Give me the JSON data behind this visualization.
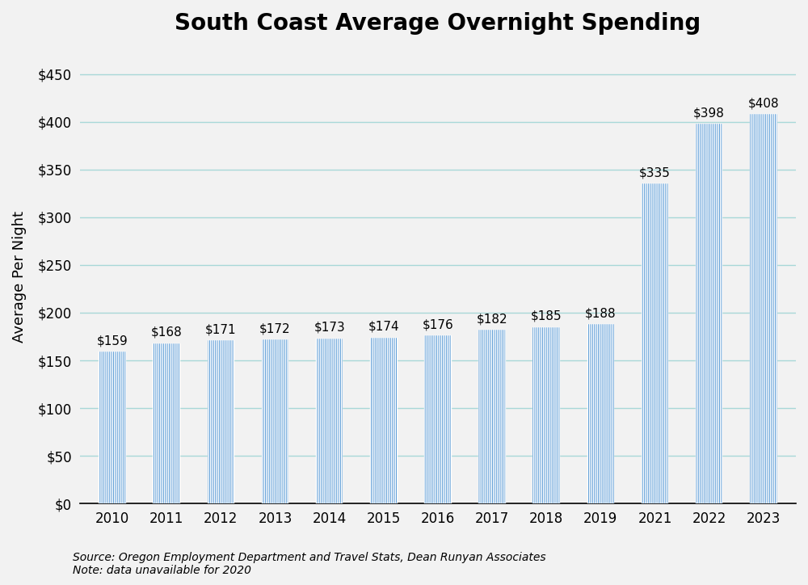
{
  "title": "South Coast Average Overnight Spending",
  "ylabel": "Average Per Night",
  "categories": [
    "2010",
    "2011",
    "2012",
    "2013",
    "2014",
    "2015",
    "2016",
    "2017",
    "2018",
    "2019",
    "2021",
    "2022",
    "2023"
  ],
  "values": [
    159,
    168,
    171,
    172,
    173,
    174,
    176,
    182,
    185,
    188,
    335,
    398,
    408
  ],
  "bar_color": "#5B9BD5",
  "bar_edge_color": "#5B9BD5",
  "bar_width": 0.5,
  "ylim": [
    0,
    475
  ],
  "yticks": [
    0,
    50,
    100,
    150,
    200,
    250,
    300,
    350,
    400,
    450
  ],
  "ytick_labels": [
    "$0",
    "$50",
    "$100",
    "$150",
    "$200",
    "$250",
    "$300",
    "$350",
    "$400",
    "$450"
  ],
  "title_fontsize": 20,
  "axis_label_fontsize": 13,
  "tick_fontsize": 12,
  "annotation_fontsize": 11,
  "source_text": "Source: Oregon Employment Department and Travel Stats, Dean Runyan Associates\nNote: data unavailable for 2020",
  "source_fontsize": 10,
  "background_color": "#F2F2F2",
  "plot_bg_color": "#F2F2F2",
  "grid_color": "#A8D8D8",
  "grid_alpha": 1.0,
  "grid_linewidth": 1.0
}
